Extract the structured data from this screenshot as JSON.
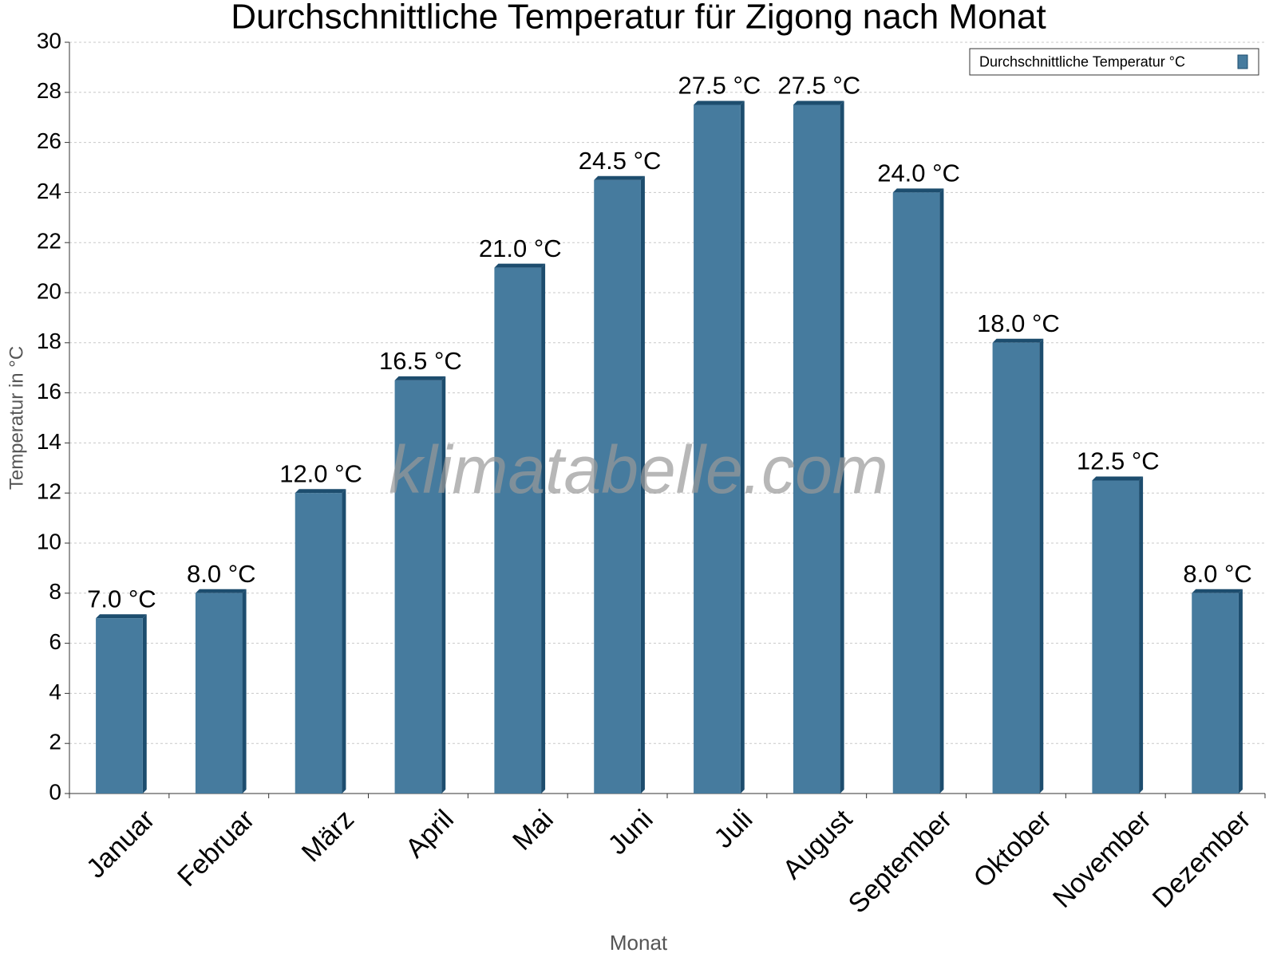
{
  "chart_data": {
    "type": "bar",
    "title": "Durchschnittliche Temperatur für Zigong nach Monat",
    "watermark": "klimatabelle.com",
    "x_label": "Monat",
    "y_label": "Temperatur in °C",
    "categories": [
      "Januar",
      "Februar",
      "März",
      "April",
      "Mai",
      "Juni",
      "Juli",
      "August",
      "September",
      "Oktober",
      "November",
      "Dezember"
    ],
    "series": [
      {
        "name": "Durchschnittliche Temperatur °C",
        "color": "#467b9e",
        "values": [
          7,
          8,
          12,
          16.5,
          21,
          24.5,
          27.5,
          27.5,
          24,
          18,
          12.5,
          8
        ],
        "value_labels": [
          "7.0 °C",
          "8.0 °C",
          "12.0 °C",
          "16.5 °C",
          "21.0 °C",
          "24.5 °C",
          "27.5 °C",
          "27.5 °C",
          "24.0 °C",
          "18.0 °C",
          "12.5 °C",
          "8.0 °C"
        ]
      }
    ],
    "ylim": [
      0,
      30
    ],
    "yticks": [
      0,
      2,
      4,
      6,
      8,
      10,
      12,
      14,
      16,
      18,
      20,
      22,
      24,
      26,
      28,
      30
    ],
    "grid": true,
    "legend": "top-right"
  }
}
